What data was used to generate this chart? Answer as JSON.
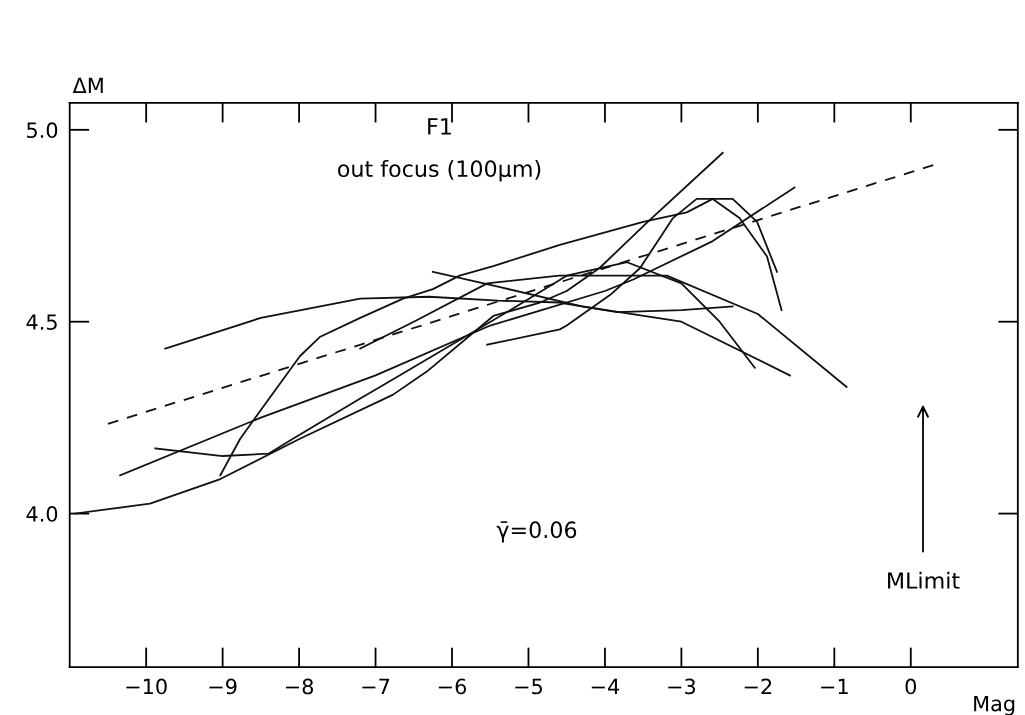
{
  "chart_data": {
    "type": "line",
    "xlabel": "Mag",
    "ylabel": "ΔM",
    "annotations": [
      "F1",
      "out focus (100μm)",
      "γ̄=0.06",
      "MLimit"
    ],
    "xlim": [
      -11,
      1.4
    ],
    "ylim": [
      3.6,
      5.07
    ],
    "xticks": [
      -10,
      -9,
      -8,
      -7,
      -6,
      -5,
      -4,
      -3,
      -2,
      -1,
      0
    ],
    "yticks": [
      {
        "value": 4.0,
        "label": "4.0"
      },
      {
        "value": 4.5,
        "label": "4.5"
      },
      {
        "value": 5.0,
        "label": "5.0"
      }
    ],
    "grid": false,
    "legend": false,
    "marker": "none",
    "series": [
      {
        "color": "#111111",
        "x": [
          -10.93,
          -9.95,
          -9.03,
          -7.99,
          -6.77,
          -6.33,
          -5.46,
          -4.85,
          -4.5,
          -4.07,
          -3.44,
          -2.46
        ],
        "values": [
          4.0,
          4.026,
          4.09,
          4.195,
          4.31,
          4.37,
          4.515,
          4.55,
          4.58,
          4.64,
          4.76,
          4.94
        ]
      },
      {
        "color": "#111111",
        "x": [
          -9.03,
          -8.77,
          -8.5,
          -7.99,
          -7.73,
          -7.2,
          -6.64,
          -6.25,
          -5.9,
          -5.46,
          -4.59,
          -3.5,
          -2.93,
          -2.59,
          -2.33,
          -2.01,
          -1.75
        ],
        "values": [
          4.1,
          4.195,
          4.27,
          4.41,
          4.46,
          4.51,
          4.56,
          4.585,
          4.62,
          4.645,
          4.7,
          4.76,
          4.785,
          4.82,
          4.82,
          4.76,
          4.63
        ]
      },
      {
        "color": "#111111",
        "x": [
          -5.54,
          -4.59,
          -4.5,
          -3.93,
          -3.54,
          -3.11,
          -2.8,
          -2.59,
          -2.24,
          -1.88,
          -1.69
        ],
        "values": [
          4.44,
          4.48,
          4.49,
          4.57,
          4.64,
          4.77,
          4.82,
          4.82,
          4.77,
          4.67,
          4.53
        ]
      },
      {
        "color": "#111111",
        "x": [
          -10.34,
          -8.5,
          -7.0,
          -5.5,
          -4.0,
          -3.63,
          -2.59,
          -1.52
        ],
        "values": [
          4.1,
          4.25,
          4.36,
          4.49,
          4.58,
          4.61,
          4.71,
          4.85
        ]
      },
      {
        "color": "#111111",
        "x": [
          -9.75,
          -8.5,
          -7.2,
          -6.3,
          -5.4,
          -4.6,
          -3.84,
          -3.0,
          -2.33
        ],
        "values": [
          4.43,
          4.51,
          4.56,
          4.565,
          4.555,
          4.55,
          4.525,
          4.53,
          4.54
        ]
      },
      {
        "color": "#111111",
        "x": [
          -6.25,
          -5.37,
          -4.3,
          -3.0,
          -1.58
        ],
        "values": [
          4.63,
          4.59,
          4.54,
          4.5,
          4.36
        ]
      },
      {
        "color": "#111111",
        "x": [
          -9.88,
          -9.0,
          -8.4,
          -8.08,
          -7.2,
          -6.77,
          -5.24,
          -4.5,
          -3.71,
          -3.0,
          -2.5,
          -2.04
        ],
        "values": [
          4.17,
          4.15,
          4.156,
          4.195,
          4.3,
          4.35,
          4.53,
          4.62,
          4.655,
          4.6,
          4.5,
          4.38
        ]
      },
      {
        "color": "#111111",
        "x": [
          -7.2,
          -6.5,
          -5.54,
          -4.6,
          -3.19,
          -2.0,
          -0.84
        ],
        "values": [
          4.43,
          4.5,
          4.6,
          4.62,
          4.62,
          4.52,
          4.33
        ]
      },
      {
        "color": "#111111",
        "line_style": "dashed",
        "x": [
          -10.5,
          0.31
        ],
        "values": [
          4.234,
          4.909
        ]
      }
    ]
  }
}
